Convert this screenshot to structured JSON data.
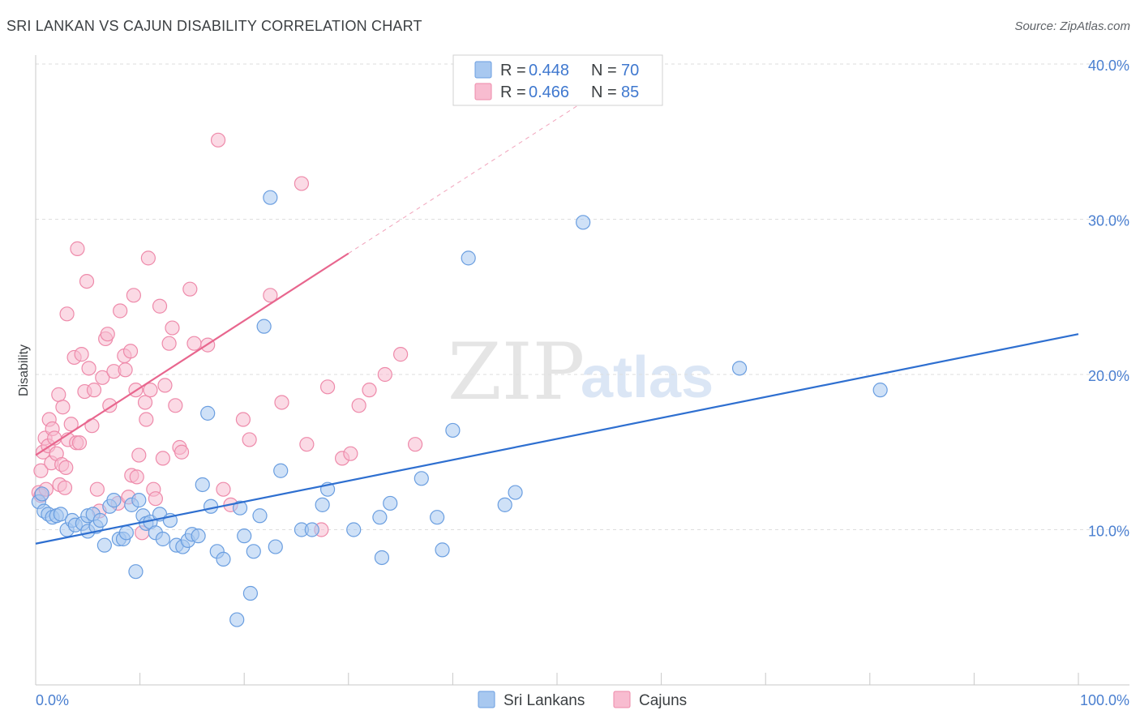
{
  "title": "SRI LANKAN VS CAJUN DISABILITY CORRELATION CHART",
  "source": "Source: ZipAtlas.com",
  "watermark": {
    "zip": "ZIP",
    "atlas": "atlas"
  },
  "colors": {
    "blue_fill": "#a8c8f0",
    "blue_stroke": "#6a9ee0",
    "blue_line": "#2e6fd0",
    "pink_fill": "#f8bcd0",
    "pink_stroke": "#ee8aaa",
    "pink_line": "#e8668e",
    "tick_label": "#4a7fd0",
    "grid": "#dedede"
  },
  "legend": {
    "rows": [
      {
        "r_label": "R =",
        "r_value": "0.448",
        "n_label": "N =",
        "n_value": "70"
      },
      {
        "r_label": "R =",
        "r_value": "0.466",
        "n_label": "N =",
        "n_value": "85"
      }
    ]
  },
  "bottom_legend": {
    "series1": "Sri Lankans",
    "series2": "Cajuns"
  },
  "chart_data": {
    "type": "scatter",
    "title": "SRI LANKAN VS CAJUN DISABILITY CORRELATION CHART",
    "xlabel": "",
    "ylabel": "Disability",
    "xlim": [
      0,
      100
    ],
    "ylim": [
      0,
      40
    ],
    "x_tick_labels": [
      "0.0%",
      "100.0%"
    ],
    "y_ticks": [
      10,
      20,
      30,
      40
    ],
    "y_tick_labels": [
      "10.0%",
      "20.0%",
      "30.0%",
      "40.0%"
    ],
    "series": [
      {
        "name": "Sri Lankans",
        "r": 0.448,
        "n": 70,
        "trend": {
          "x": [
            0,
            100
          ],
          "y": [
            9.1,
            22.6
          ],
          "dashed_from": null
        },
        "points": [
          [
            0.3,
            11.8
          ],
          [
            0.6,
            12.3
          ],
          [
            0.8,
            11.2
          ],
          [
            1.2,
            11.0
          ],
          [
            1.6,
            10.8
          ],
          [
            2.0,
            10.9
          ],
          [
            2.4,
            11.0
          ],
          [
            3.0,
            10.0
          ],
          [
            3.5,
            10.6
          ],
          [
            3.8,
            10.3
          ],
          [
            4.5,
            10.4
          ],
          [
            5.0,
            10.9
          ],
          [
            5.0,
            9.9
          ],
          [
            5.5,
            11.0
          ],
          [
            5.8,
            10.2
          ],
          [
            6.2,
            10.6
          ],
          [
            6.6,
            9.0
          ],
          [
            7.1,
            11.5
          ],
          [
            7.5,
            11.9
          ],
          [
            8.0,
            9.4
          ],
          [
            8.4,
            9.4
          ],
          [
            8.7,
            9.8
          ],
          [
            9.2,
            11.6
          ],
          [
            9.6,
            7.3
          ],
          [
            9.9,
            11.9
          ],
          [
            10.3,
            10.9
          ],
          [
            10.6,
            10.4
          ],
          [
            11.0,
            10.5
          ],
          [
            11.5,
            9.8
          ],
          [
            11.9,
            11.0
          ],
          [
            12.2,
            9.4
          ],
          [
            12.9,
            10.6
          ],
          [
            13.5,
            9.0
          ],
          [
            14.1,
            8.9
          ],
          [
            14.6,
            9.3
          ],
          [
            15.0,
            9.7
          ],
          [
            15.6,
            9.6
          ],
          [
            16.0,
            12.9
          ],
          [
            16.5,
            17.5
          ],
          [
            16.8,
            11.5
          ],
          [
            17.4,
            8.6
          ],
          [
            18.0,
            8.1
          ],
          [
            19.3,
            4.2
          ],
          [
            19.6,
            11.4
          ],
          [
            20.0,
            9.6
          ],
          [
            20.6,
            5.9
          ],
          [
            20.9,
            8.6
          ],
          [
            21.5,
            10.9
          ],
          [
            21.9,
            23.1
          ],
          [
            22.5,
            31.4
          ],
          [
            23.0,
            8.9
          ],
          [
            23.5,
            13.8
          ],
          [
            25.5,
            10.0
          ],
          [
            26.5,
            10.0
          ],
          [
            27.5,
            11.6
          ],
          [
            28.0,
            12.6
          ],
          [
            30.5,
            10.0
          ],
          [
            33.0,
            10.8
          ],
          [
            33.2,
            8.2
          ],
          [
            34.0,
            11.7
          ],
          [
            37.0,
            13.3
          ],
          [
            38.5,
            10.8
          ],
          [
            39.0,
            8.7
          ],
          [
            40.0,
            16.4
          ],
          [
            41.5,
            27.5
          ],
          [
            45.0,
            11.6
          ],
          [
            46.0,
            12.4
          ],
          [
            52.5,
            29.8
          ],
          [
            67.5,
            20.4
          ],
          [
            81.0,
            19.0
          ]
        ]
      },
      {
        "name": "Cajuns",
        "r": 0.466,
        "n": 85,
        "trend": {
          "x": [
            0,
            30,
            54
          ],
          "y": [
            14.8,
            27.8,
            38.2
          ],
          "dashed_from": 30
        },
        "points": [
          [
            0.3,
            12.4
          ],
          [
            0.5,
            12.2
          ],
          [
            0.5,
            13.8
          ],
          [
            0.7,
            15.0
          ],
          [
            0.9,
            15.9
          ],
          [
            1.0,
            12.6
          ],
          [
            1.2,
            15.4
          ],
          [
            1.3,
            17.1
          ],
          [
            1.5,
            14.3
          ],
          [
            1.6,
            16.5
          ],
          [
            1.8,
            15.9
          ],
          [
            2.0,
            14.9
          ],
          [
            2.2,
            18.7
          ],
          [
            2.3,
            12.9
          ],
          [
            2.5,
            14.2
          ],
          [
            2.6,
            17.9
          ],
          [
            2.8,
            12.7
          ],
          [
            2.9,
            14.0
          ],
          [
            3.0,
            23.9
          ],
          [
            3.1,
            15.8
          ],
          [
            3.4,
            16.8
          ],
          [
            3.7,
            21.1
          ],
          [
            3.9,
            15.6
          ],
          [
            4.0,
            28.1
          ],
          [
            4.2,
            15.6
          ],
          [
            4.4,
            21.3
          ],
          [
            4.7,
            18.9
          ],
          [
            4.9,
            26.0
          ],
          [
            5.1,
            20.4
          ],
          [
            5.4,
            16.7
          ],
          [
            5.6,
            19.0
          ],
          [
            5.9,
            12.6
          ],
          [
            6.1,
            11.2
          ],
          [
            6.4,
            19.8
          ],
          [
            6.7,
            22.3
          ],
          [
            6.9,
            22.6
          ],
          [
            7.1,
            18.0
          ],
          [
            7.5,
            20.2
          ],
          [
            7.9,
            11.7
          ],
          [
            8.1,
            24.1
          ],
          [
            8.5,
            21.2
          ],
          [
            8.6,
            20.3
          ],
          [
            8.9,
            12.1
          ],
          [
            9.1,
            21.5
          ],
          [
            9.2,
            13.5
          ],
          [
            9.4,
            25.1
          ],
          [
            9.6,
            19.0
          ],
          [
            9.7,
            13.4
          ],
          [
            9.9,
            14.8
          ],
          [
            10.2,
            9.8
          ],
          [
            10.5,
            18.2
          ],
          [
            10.6,
            17.1
          ],
          [
            10.8,
            27.5
          ],
          [
            11.0,
            19.0
          ],
          [
            11.3,
            12.6
          ],
          [
            11.5,
            12.0
          ],
          [
            11.9,
            24.4
          ],
          [
            12.2,
            14.6
          ],
          [
            12.4,
            19.3
          ],
          [
            12.8,
            22.0
          ],
          [
            13.1,
            23.0
          ],
          [
            13.4,
            18.0
          ],
          [
            13.8,
            15.3
          ],
          [
            14.0,
            15.0
          ],
          [
            14.8,
            25.5
          ],
          [
            15.2,
            22.0
          ],
          [
            16.5,
            21.9
          ],
          [
            17.5,
            35.1
          ],
          [
            18.0,
            12.6
          ],
          [
            18.7,
            11.6
          ],
          [
            19.9,
            17.1
          ],
          [
            20.5,
            15.8
          ],
          [
            22.5,
            25.1
          ],
          [
            23.6,
            18.2
          ],
          [
            25.5,
            32.3
          ],
          [
            26.0,
            15.5
          ],
          [
            27.4,
            10.0
          ],
          [
            28.0,
            19.2
          ],
          [
            29.4,
            14.6
          ],
          [
            30.2,
            14.9
          ],
          [
            31.0,
            18.0
          ],
          [
            32.0,
            19.0
          ],
          [
            33.5,
            20.0
          ],
          [
            35.0,
            21.3
          ],
          [
            36.4,
            15.5
          ]
        ]
      }
    ]
  }
}
